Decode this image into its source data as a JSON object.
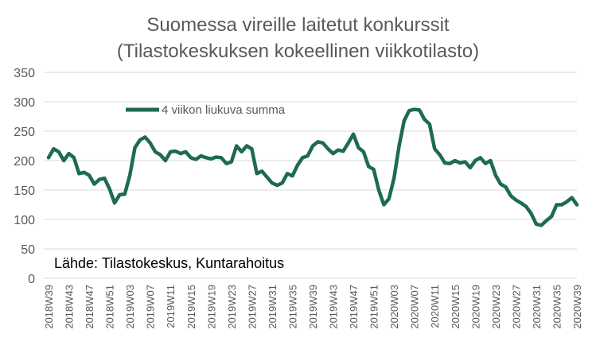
{
  "chart_data": {
    "type": "line",
    "title": "Suomessa vireille laitetut konkurssit",
    "subtitle": "(Tilastokeskuksen kokeellinen viikkotilasto)",
    "source_note": "Lähde: Tilastokeskus, Kuntarahoitus",
    "ylim": [
      0,
      350
    ],
    "yticks": [
      0,
      50,
      100,
      150,
      200,
      250,
      300,
      350
    ],
    "grid": "horizontal",
    "legend_position": "top-left",
    "x_tick_labels": [
      "2018W39",
      "2018W43",
      "2018W47",
      "2018W51",
      "2019W03",
      "2019W07",
      "2019W11",
      "2019W15",
      "2019W19",
      "2019W23",
      "2019W27",
      "2019W31",
      "2019W35",
      "2019W39",
      "2019W43",
      "2019W47",
      "2019W51",
      "2020W03",
      "2020W07",
      "2020W11",
      "2020W15",
      "2020W19",
      "2020W23",
      "2020W27",
      "2020W31",
      "2020W35",
      "2020W39"
    ],
    "series": [
      {
        "name": "4 viikon liukuva summa",
        "color": "#1e6b4f",
        "values": [
          205,
          220,
          215,
          200,
          212,
          205,
          178,
          180,
          175,
          160,
          168,
          170,
          152,
          128,
          142,
          143,
          175,
          222,
          235,
          240,
          230,
          215,
          210,
          200,
          215,
          216,
          212,
          215,
          205,
          202,
          208,
          205,
          203,
          206,
          205,
          195,
          198,
          225,
          215,
          225,
          220,
          178,
          182,
          172,
          162,
          158,
          162,
          178,
          174,
          192,
          205,
          208,
          225,
          232,
          230,
          220,
          212,
          218,
          216,
          230,
          245,
          222,
          215,
          190,
          185,
          150,
          125,
          135,
          170,
          225,
          268,
          285,
          287,
          286,
          270,
          262,
          220,
          210,
          196,
          195,
          200,
          196,
          198,
          188,
          200,
          205,
          195,
          200,
          175,
          160,
          155,
          140,
          133,
          128,
          122,
          110,
          92,
          90,
          98,
          105,
          125,
          125,
          130,
          137,
          125
        ]
      }
    ]
  }
}
